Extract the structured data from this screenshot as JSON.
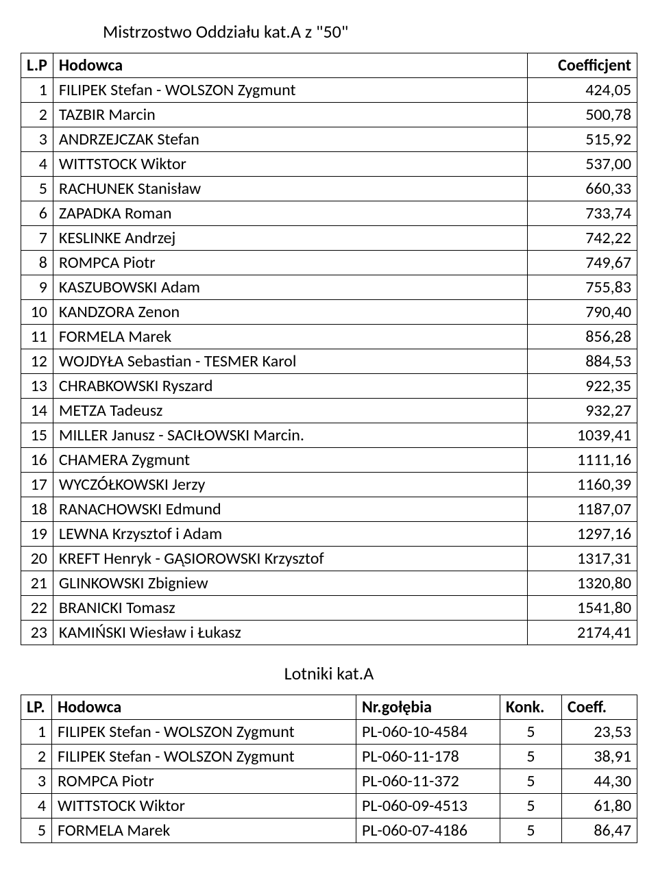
{
  "title": "Mistrzostwo Oddziału kat.A z \"50\"",
  "table1": {
    "headers": {
      "lp": "L.P",
      "name": "Hodowca",
      "coef": "Coefficjent"
    },
    "rows": [
      {
        "lp": "1",
        "name": "FILIPEK Stefan - WOLSZON Zygmunt",
        "coef": "424,05"
      },
      {
        "lp": "2",
        "name": "TAZBIR Marcin",
        "coef": "500,78"
      },
      {
        "lp": "3",
        "name": "ANDRZEJCZAK Stefan",
        "coef": "515,92"
      },
      {
        "lp": "4",
        "name": "WITTSTOCK Wiktor",
        "coef": "537,00"
      },
      {
        "lp": "5",
        "name": "RACHUNEK Stanisław",
        "coef": "660,33"
      },
      {
        "lp": "6",
        "name": "ZAPADKA Roman",
        "coef": "733,74"
      },
      {
        "lp": "7",
        "name": "KESLINKE Andrzej",
        "coef": "742,22"
      },
      {
        "lp": "8",
        "name": "ROMPCA Piotr",
        "coef": "749,67"
      },
      {
        "lp": "9",
        "name": "KASZUBOWSKI Adam",
        "coef": "755,83"
      },
      {
        "lp": "10",
        "name": "KANDZORA Zenon",
        "coef": "790,40"
      },
      {
        "lp": "11",
        "name": "FORMELA Marek",
        "coef": "856,28"
      },
      {
        "lp": "12",
        "name": "WOJDYŁA Sebastian - TESMER Karol",
        "coef": "884,53"
      },
      {
        "lp": "13",
        "name": "CHRABKOWSKI Ryszard",
        "coef": "922,35"
      },
      {
        "lp": "14",
        "name": "METZA Tadeusz",
        "coef": "932,27"
      },
      {
        "lp": "15",
        "name": "MILLER Janusz - SACIŁOWSKI Marcin.",
        "coef": "1039,41"
      },
      {
        "lp": "16",
        "name": "CHAMERA Zygmunt",
        "coef": "1111,16"
      },
      {
        "lp": "17",
        "name": "WYCZÓŁKOWSKI Jerzy",
        "coef": "1160,39"
      },
      {
        "lp": "18",
        "name": "RANACHOWSKI Edmund",
        "coef": "1187,07"
      },
      {
        "lp": "19",
        "name": "LEWNA Krzysztof i Adam",
        "coef": "1297,16"
      },
      {
        "lp": "20",
        "name": "KREFT Henryk - GĄSIOROWSKI Krzysztof",
        "coef": "1317,31"
      },
      {
        "lp": "21",
        "name": "GLINKOWSKI Zbigniew",
        "coef": "1320,80"
      },
      {
        "lp": "22",
        "name": "BRANICKI Tomasz",
        "coef": "1541,80"
      },
      {
        "lp": "23",
        "name": "KAMIŃSKI Wiesław i Łukasz",
        "coef": "2174,41"
      }
    ]
  },
  "subtitle": "Lotniki kat.A",
  "table2": {
    "headers": {
      "lp": "LP.",
      "name": "Hodowca",
      "ring": "Nr.gołębia",
      "konk": "Konk.",
      "coeff": "Coeff."
    },
    "rows": [
      {
        "lp": "1",
        "name": "FILIPEK Stefan - WOLSZON Zygmunt",
        "ring": "PL-060-10-4584",
        "konk": "5",
        "coeff": "23,53"
      },
      {
        "lp": "2",
        "name": "FILIPEK Stefan - WOLSZON Zygmunt",
        "ring": "PL-060-11-178",
        "konk": "5",
        "coeff": "38,91"
      },
      {
        "lp": "3",
        "name": "ROMPCA Piotr",
        "ring": "PL-060-11-372",
        "konk": "5",
        "coeff": "44,30"
      },
      {
        "lp": "4",
        "name": "WITTSTOCK Wiktor",
        "ring": "PL-060-09-4513",
        "konk": "5",
        "coeff": "61,80"
      },
      {
        "lp": "5",
        "name": "FORMELA Marek",
        "ring": "PL-060-07-4186",
        "konk": "5",
        "coeff": "86,47"
      }
    ]
  },
  "styles": {
    "font_family": "Calibri, Arial, sans-serif",
    "title_fontsize": 26,
    "body_fontsize": 24,
    "border_color": "#000000",
    "background_color": "#ffffff",
    "text_color": "#000000"
  }
}
